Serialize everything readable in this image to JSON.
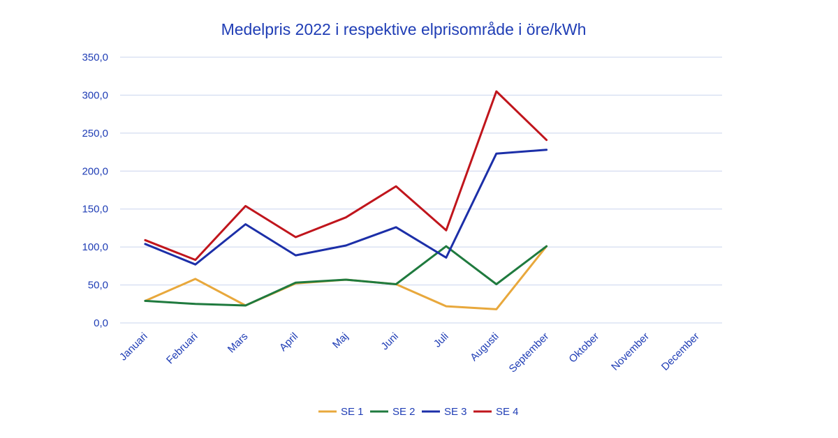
{
  "colors": {
    "text": "#1f3db5",
    "grid": "#c9d4ee",
    "axis": "#c9d4ee"
  },
  "chart_data": {
    "type": "line",
    "title": "Medelpris 2022 i respektive elprisområde i öre/kWh",
    "xlabel": "",
    "ylabel": "",
    "ylim": [
      0,
      350
    ],
    "yticks": [
      0,
      50,
      100,
      150,
      200,
      250,
      300,
      350
    ],
    "ytick_labels": [
      "0,0",
      "50,0",
      "100,0",
      "150,0",
      "200,0",
      "250,0",
      "300,0",
      "350,0"
    ],
    "categories": [
      "Januari",
      "Februari",
      "Mars",
      "April",
      "Maj",
      "Juni",
      "Juli",
      "Augusti",
      "September",
      "Oktober",
      "November",
      "December"
    ],
    "grid": true,
    "legend_position": "bottom",
    "series": [
      {
        "name": "SE 1",
        "color": "#e8a83c",
        "values": [
          29,
          58,
          23,
          52,
          57,
          51,
          22,
          18,
          101,
          null,
          null,
          null
        ]
      },
      {
        "name": "SE 2",
        "color": "#1f7a3e",
        "values": [
          29,
          25,
          23,
          53,
          57,
          51,
          101,
          51,
          101,
          null,
          null,
          null
        ]
      },
      {
        "name": "SE 3",
        "color": "#1c2fa8",
        "values": [
          104,
          77,
          130,
          89,
          102,
          126,
          86,
          223,
          228,
          null,
          null,
          null
        ]
      },
      {
        "name": "SE 4",
        "color": "#c0151c",
        "values": [
          109,
          83,
          154,
          113,
          139,
          180,
          122,
          305,
          241,
          null,
          null,
          null
        ]
      }
    ]
  }
}
